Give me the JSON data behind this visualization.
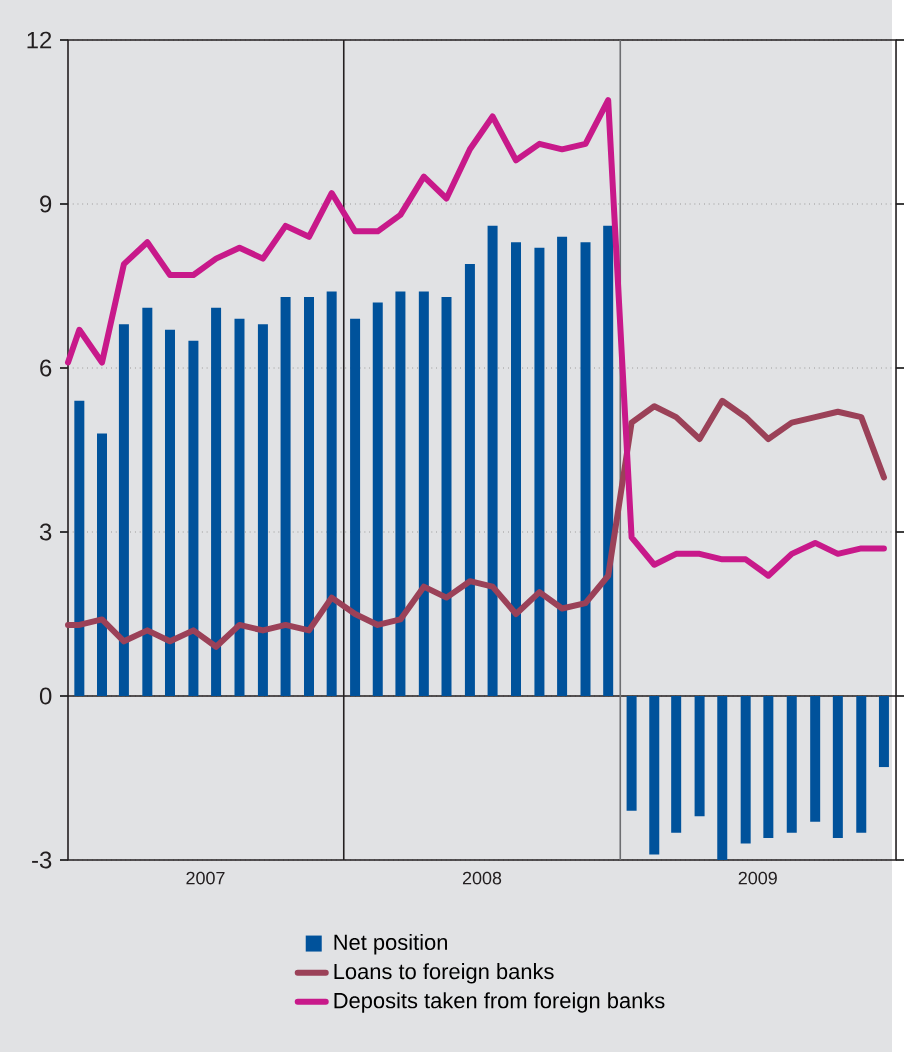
{
  "chart_data": {
    "type": "bar",
    "x": [
      "2007-01-16",
      "2007-02-15",
      "2007-03-16",
      "2007-04-16",
      "2007-05-16",
      "2007-06-16",
      "2007-07-16",
      "2007-08-16",
      "2007-09-16",
      "2007-10-16",
      "2007-11-16",
      "2007-12-16",
      "2008-01-16",
      "2008-02-15",
      "2008-03-16",
      "2008-04-16",
      "2008-05-16",
      "2008-06-16",
      "2008-07-16",
      "2008-08-16",
      "2008-09-16",
      "2008-10-16",
      "2008-11-16",
      "2008-12-16",
      "2009-01-16",
      "2009-02-15",
      "2009-03-16",
      "2009-04-16",
      "2009-05-16",
      "2009-06-16",
      "2009-07-16",
      "2009-08-16",
      "2009-09-16",
      "2009-10-16",
      "2009-11-16",
      "2009-12-16"
    ],
    "series": [
      {
        "name": "Net position",
        "color": "#00529b",
        "values": [
          5.4,
          4.8,
          6.8,
          7.1,
          6.7,
          6.5,
          7.1,
          6.9,
          6.8,
          7.3,
          7.3,
          7.4,
          6.9,
          7.2,
          7.4,
          7.4,
          7.3,
          7.9,
          8.6,
          8.3,
          8.2,
          8.4,
          8.3,
          8.6,
          -2.1,
          -2.9,
          -2.5,
          -2.2,
          -3.0,
          -2.7,
          -2.6,
          -2.5,
          -2.3,
          -2.6,
          -2.5,
          -1.3
        ]
      },
      {
        "name": "Loans to foreign banks",
        "type": "line",
        "color": "#9b4158",
        "x": [
          "2007-01-01",
          "2007-01-16",
          "2007-02-15",
          "2007-03-16",
          "2007-04-16",
          "2007-05-16",
          "2007-06-16",
          "2007-07-16",
          "2007-08-16",
          "2007-09-16",
          "2007-10-16",
          "2007-11-16",
          "2007-12-16",
          "2008-01-16",
          "2008-02-15",
          "2008-03-16",
          "2008-04-16",
          "2008-05-16",
          "2008-06-16",
          "2008-07-16",
          "2008-08-16",
          "2008-09-16",
          "2008-10-16",
          "2008-11-16",
          "2008-12-16",
          "2009-01-16",
          "2009-02-15",
          "2009-03-16",
          "2009-04-16",
          "2009-05-16",
          "2009-06-16",
          "2009-07-16",
          "2009-08-16",
          "2009-09-16",
          "2009-10-16",
          "2009-11-16",
          "2009-12-16"
        ],
        "values": [
          1.3,
          1.3,
          1.4,
          1.0,
          1.2,
          1.0,
          1.2,
          0.9,
          1.3,
          1.2,
          1.3,
          1.2,
          1.8,
          1.5,
          1.3,
          1.4,
          2.0,
          1.8,
          2.1,
          2.0,
          1.5,
          1.9,
          1.6,
          1.7,
          2.2,
          5.0,
          5.3,
          5.1,
          4.7,
          5.4,
          5.1,
          4.7,
          5.0,
          5.1,
          5.2,
          5.1,
          4.0
        ]
      },
      {
        "name": "Deposits taken from foreign banks",
        "type": "line",
        "color": "#c8198a",
        "x": [
          "2007-01-01",
          "2007-01-16",
          "2007-02-15",
          "2007-03-16",
          "2007-04-16",
          "2007-05-16",
          "2007-06-16",
          "2007-07-16",
          "2007-08-16",
          "2007-09-16",
          "2007-10-16",
          "2007-11-16",
          "2007-12-16",
          "2008-01-16",
          "2008-02-15",
          "2008-03-16",
          "2008-04-16",
          "2008-05-16",
          "2008-06-16",
          "2008-07-16",
          "2008-08-16",
          "2008-09-16",
          "2008-10-16",
          "2008-11-16",
          "2008-12-16",
          "2009-01-16",
          "2009-02-15",
          "2009-03-16",
          "2009-04-16",
          "2009-05-16",
          "2009-06-16",
          "2009-07-16",
          "2009-08-16",
          "2009-09-16",
          "2009-10-16",
          "2009-11-16",
          "2009-12-16"
        ],
        "values": [
          6.1,
          6.7,
          6.1,
          7.9,
          8.3,
          7.7,
          7.7,
          8.0,
          8.2,
          8.0,
          8.6,
          8.4,
          9.2,
          8.5,
          8.5,
          8.8,
          9.5,
          9.1,
          10.0,
          10.6,
          9.8,
          10.1,
          10.0,
          10.1,
          10.9,
          2.9,
          2.4,
          2.6,
          2.6,
          2.5,
          2.5,
          2.2,
          2.6,
          2.8,
          2.6,
          2.7,
          2.7
        ]
      }
    ],
    "xlim": [
      "2007-01-01",
      "2010-01-01"
    ],
    "xticks": [
      {
        "value": "2007-07-02",
        "label": "2007"
      },
      {
        "value": "2008-07-02",
        "label": "2008"
      },
      {
        "value": "2009-07-02",
        "label": "2009"
      }
    ],
    "ylim": [
      -3,
      12
    ],
    "yticks": [
      -3,
      0,
      3,
      6,
      9,
      12
    ],
    "grid": "y",
    "legend": "bottom",
    "marker": "none",
    "line_style": "solid",
    "ref_lines": [
      {
        "axis": "y",
        "value": 0,
        "color": "#231f20"
      },
      {
        "axis": "x",
        "value": "2008-01-01",
        "color": "#231f20"
      },
      {
        "axis": "x",
        "value": "2009-01-01",
        "color": "#6d6e71"
      }
    ]
  }
}
